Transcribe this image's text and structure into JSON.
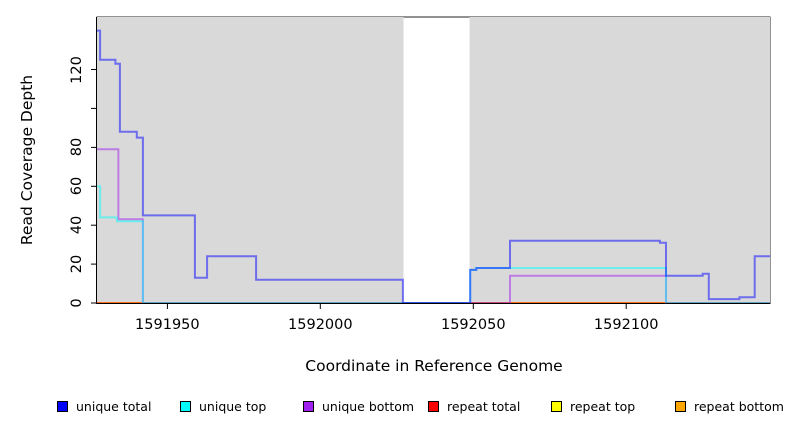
{
  "figure": {
    "background": "#ffffff",
    "axis_color": "#000000",
    "box_color": "#262626"
  },
  "chart_data": {
    "type": "line",
    "line_style": "step",
    "title": "",
    "xlabel": "Coordinate in Reference Genome",
    "ylabel": "Read Coverage Depth",
    "xlim": [
      1591927,
      1592147
    ],
    "ylim": [
      0,
      147
    ],
    "grid": false,
    "legend_position": "bottom",
    "panel_color": "#d9d9d9",
    "gap_region": [
      1592027.2,
      1592048.8
    ],
    "shaded_regions": [
      [
        1591927,
        1592027.2
      ],
      [
        1592048.8,
        1592147
      ]
    ],
    "x_ticks": [
      {
        "value": 1591950,
        "label": "1591950"
      },
      {
        "value": 1592000,
        "label": "1592000"
      },
      {
        "value": 1592050,
        "label": "1592050"
      },
      {
        "value": 1592100,
        "label": "1592100"
      }
    ],
    "y_ticks": [
      {
        "value": 0,
        "label": "0"
      },
      {
        "value": 20,
        "label": "20"
      },
      {
        "value": 40,
        "label": "40"
      },
      {
        "value": 60,
        "label": "60"
      },
      {
        "value": 80,
        "label": "80"
      },
      {
        "value": 100,
        "label": ""
      },
      {
        "value": 120,
        "label": "120"
      }
    ],
    "line_opacity": 0.5,
    "line_width": 2,
    "series": [
      {
        "id": "repeat-bottom",
        "name": "repeat bottom",
        "color": "#FFA500",
        "points": [
          [
            1591927,
            0
          ]
        ]
      },
      {
        "id": "repeat-top",
        "name": "repeat top",
        "color": "#FFFF00",
        "points": [
          [
            1591927,
            0
          ]
        ]
      },
      {
        "id": "repeat-total",
        "name": "repeat total",
        "color": "#FF0000",
        "points": [
          [
            1591927,
            0
          ]
        ]
      },
      {
        "id": "unique-bottom",
        "name": "unique bottom",
        "color": "#A020F0",
        "points": [
          [
            1591927,
            79
          ],
          [
            1591934,
            43
          ],
          [
            1591942,
            0
          ],
          [
            1592062,
            14
          ],
          [
            1592113,
            0
          ]
        ]
      },
      {
        "id": "unique-top",
        "name": "unique top",
        "color": "#00FFFF",
        "points": [
          [
            1591927,
            60
          ],
          [
            1591928,
            44
          ],
          [
            1591933.5,
            42
          ],
          [
            1591942,
            0
          ],
          [
            1592049,
            17
          ],
          [
            1592051,
            18
          ],
          [
            1592113,
            0
          ]
        ]
      },
      {
        "id": "unique-total",
        "name": "unique total",
        "color": "#0000FF",
        "points": [
          [
            1591927,
            140
          ],
          [
            1591928,
            125
          ],
          [
            1591933,
            123
          ],
          [
            1591934.5,
            88
          ],
          [
            1591940,
            85
          ],
          [
            1591942,
            45
          ],
          [
            1591959,
            13
          ],
          [
            1591963,
            24
          ],
          [
            1591979,
            12
          ],
          [
            1592027,
            0
          ],
          [
            1592049,
            17
          ],
          [
            1592051,
            18
          ],
          [
            1592062,
            32
          ],
          [
            1592111,
            31
          ],
          [
            1592113,
            14
          ],
          [
            1592125,
            15
          ],
          [
            1592127,
            2
          ],
          [
            1592137,
            3
          ],
          [
            1592142,
            24
          ]
        ]
      }
    ],
    "legend": [
      {
        "label": "unique total",
        "color": "#0000FF"
      },
      {
        "label": "unique top",
        "color": "#00FFFF"
      },
      {
        "label": "unique bottom",
        "color": "#A020F0"
      },
      {
        "label": "repeat total",
        "color": "#FF0000"
      },
      {
        "label": "repeat top",
        "color": "#FFFF00"
      },
      {
        "label": "repeat bottom",
        "color": "#FFA500"
      }
    ]
  }
}
